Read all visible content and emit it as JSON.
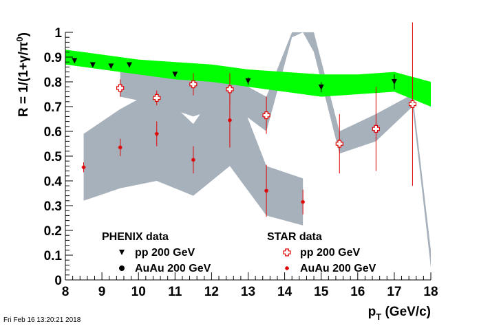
{
  "timestamp": "Fri Feb 16 13:20:21 2018",
  "chart_data": {
    "type": "scatter",
    "title": "",
    "xlabel": "p_T (GeV/c)",
    "ylabel": "R = 1/(1+γ/π⁰)",
    "xlim": [
      8,
      18
    ],
    "ylim": [
      0,
      1
    ],
    "x_ticks": [
      8,
      9,
      10,
      11,
      12,
      13,
      14,
      15,
      16,
      17,
      18
    ],
    "y_ticks": [
      0,
      0.1,
      0.2,
      0.3,
      0.4,
      0.5,
      0.6,
      0.7,
      0.8,
      0.9,
      1
    ],
    "grid": false,
    "colors": {
      "green_band": "#00ff00",
      "grey_band": "#a7b1bb",
      "phenix_marker": "#000000",
      "star_marker": "#e00000",
      "axis": "#000000"
    },
    "legend": {
      "phenix_header": "PHENIX data",
      "star_header": "STAR data",
      "entries": [
        {
          "group": "PHENIX",
          "label": "pp 200 GeV",
          "marker": "triangle-down",
          "color": "#000000"
        },
        {
          "group": "PHENIX",
          "label": "AuAu 200 GeV",
          "marker": "circle",
          "color": "#000000"
        },
        {
          "group": "STAR",
          "label": "pp 200 GeV",
          "marker": "open-cross",
          "color": "#e00000"
        },
        {
          "group": "STAR",
          "label": "AuAu 200 GeV",
          "marker": "star",
          "color": "#e00000"
        }
      ]
    },
    "bands": {
      "green": {
        "x": [
          8,
          9,
          10,
          11,
          12,
          13,
          14,
          15,
          16,
          17,
          18
        ],
        "lower": [
          0.87,
          0.85,
          0.83,
          0.81,
          0.8,
          0.78,
          0.76,
          0.74,
          0.75,
          0.76,
          0.7
        ],
        "upper": [
          0.93,
          0.91,
          0.89,
          0.88,
          0.87,
          0.85,
          0.84,
          0.83,
          0.83,
          0.84,
          0.8
        ]
      },
      "grey_auau": {
        "x": [
          8.5,
          9.5,
          10.5,
          11.5,
          12.5,
          13.5,
          14.5
        ],
        "lower": [
          0.32,
          0.37,
          0.4,
          0.34,
          0.46,
          0.26,
          0.22
        ],
        "upper": [
          0.59,
          0.69,
          0.77,
          0.63,
          0.84,
          0.46,
          0.41
        ]
      },
      "grey_pp": {
        "x": [
          9.5,
          10.5,
          11.5,
          12.5,
          13.5,
          14.2,
          14.5,
          14.8,
          15.5,
          16.5,
          17.5,
          18
        ],
        "lower": [
          0.74,
          0.71,
          0.66,
          0.71,
          0.6,
          0.98,
          1.0,
          0.92,
          0.51,
          0.56,
          0.7,
          0.05
        ],
        "upper": [
          0.84,
          0.84,
          0.82,
          0.82,
          0.74,
          1.0,
          1.0,
          1.0,
          0.6,
          0.67,
          0.75,
          0.12
        ]
      }
    },
    "series": [
      {
        "name": "PHENIX pp 200 GeV",
        "marker": "triangle-down",
        "x": [
          8.25,
          8.75,
          9.25,
          9.75,
          11,
          13,
          15,
          17
        ],
        "y": [
          0.885,
          0.868,
          0.863,
          0.868,
          0.83,
          0.803,
          0.778,
          0.8
        ],
        "yerr": [
          0.01,
          0.008,
          0.008,
          0.008,
          0.01,
          0.015,
          0.02,
          0.03
        ]
      },
      {
        "name": "STAR pp 200 GeV",
        "marker": "open-cross",
        "x": [
          9.5,
          10.5,
          11.5,
          12.5,
          13.5,
          15.5,
          16.5,
          17.5
        ],
        "y": [
          0.775,
          0.735,
          0.79,
          0.77,
          0.665,
          0.55,
          0.61,
          0.71
        ],
        "yerr": [
          0.035,
          0.03,
          0.045,
          0.065,
          0.075,
          0.12,
          0.17,
          0.33
        ]
      },
      {
        "name": "STAR AuAu 200 GeV",
        "marker": "star",
        "x": [
          8.5,
          9.5,
          10.5,
          11.5,
          12.5,
          13.5,
          14.5
        ],
        "y": [
          0.455,
          0.535,
          0.59,
          0.485,
          0.645,
          0.36,
          0.315
        ],
        "yerr": [
          0.02,
          0.035,
          0.05,
          0.055,
          0.11,
          0.105,
          0.05
        ]
      }
    ]
  }
}
